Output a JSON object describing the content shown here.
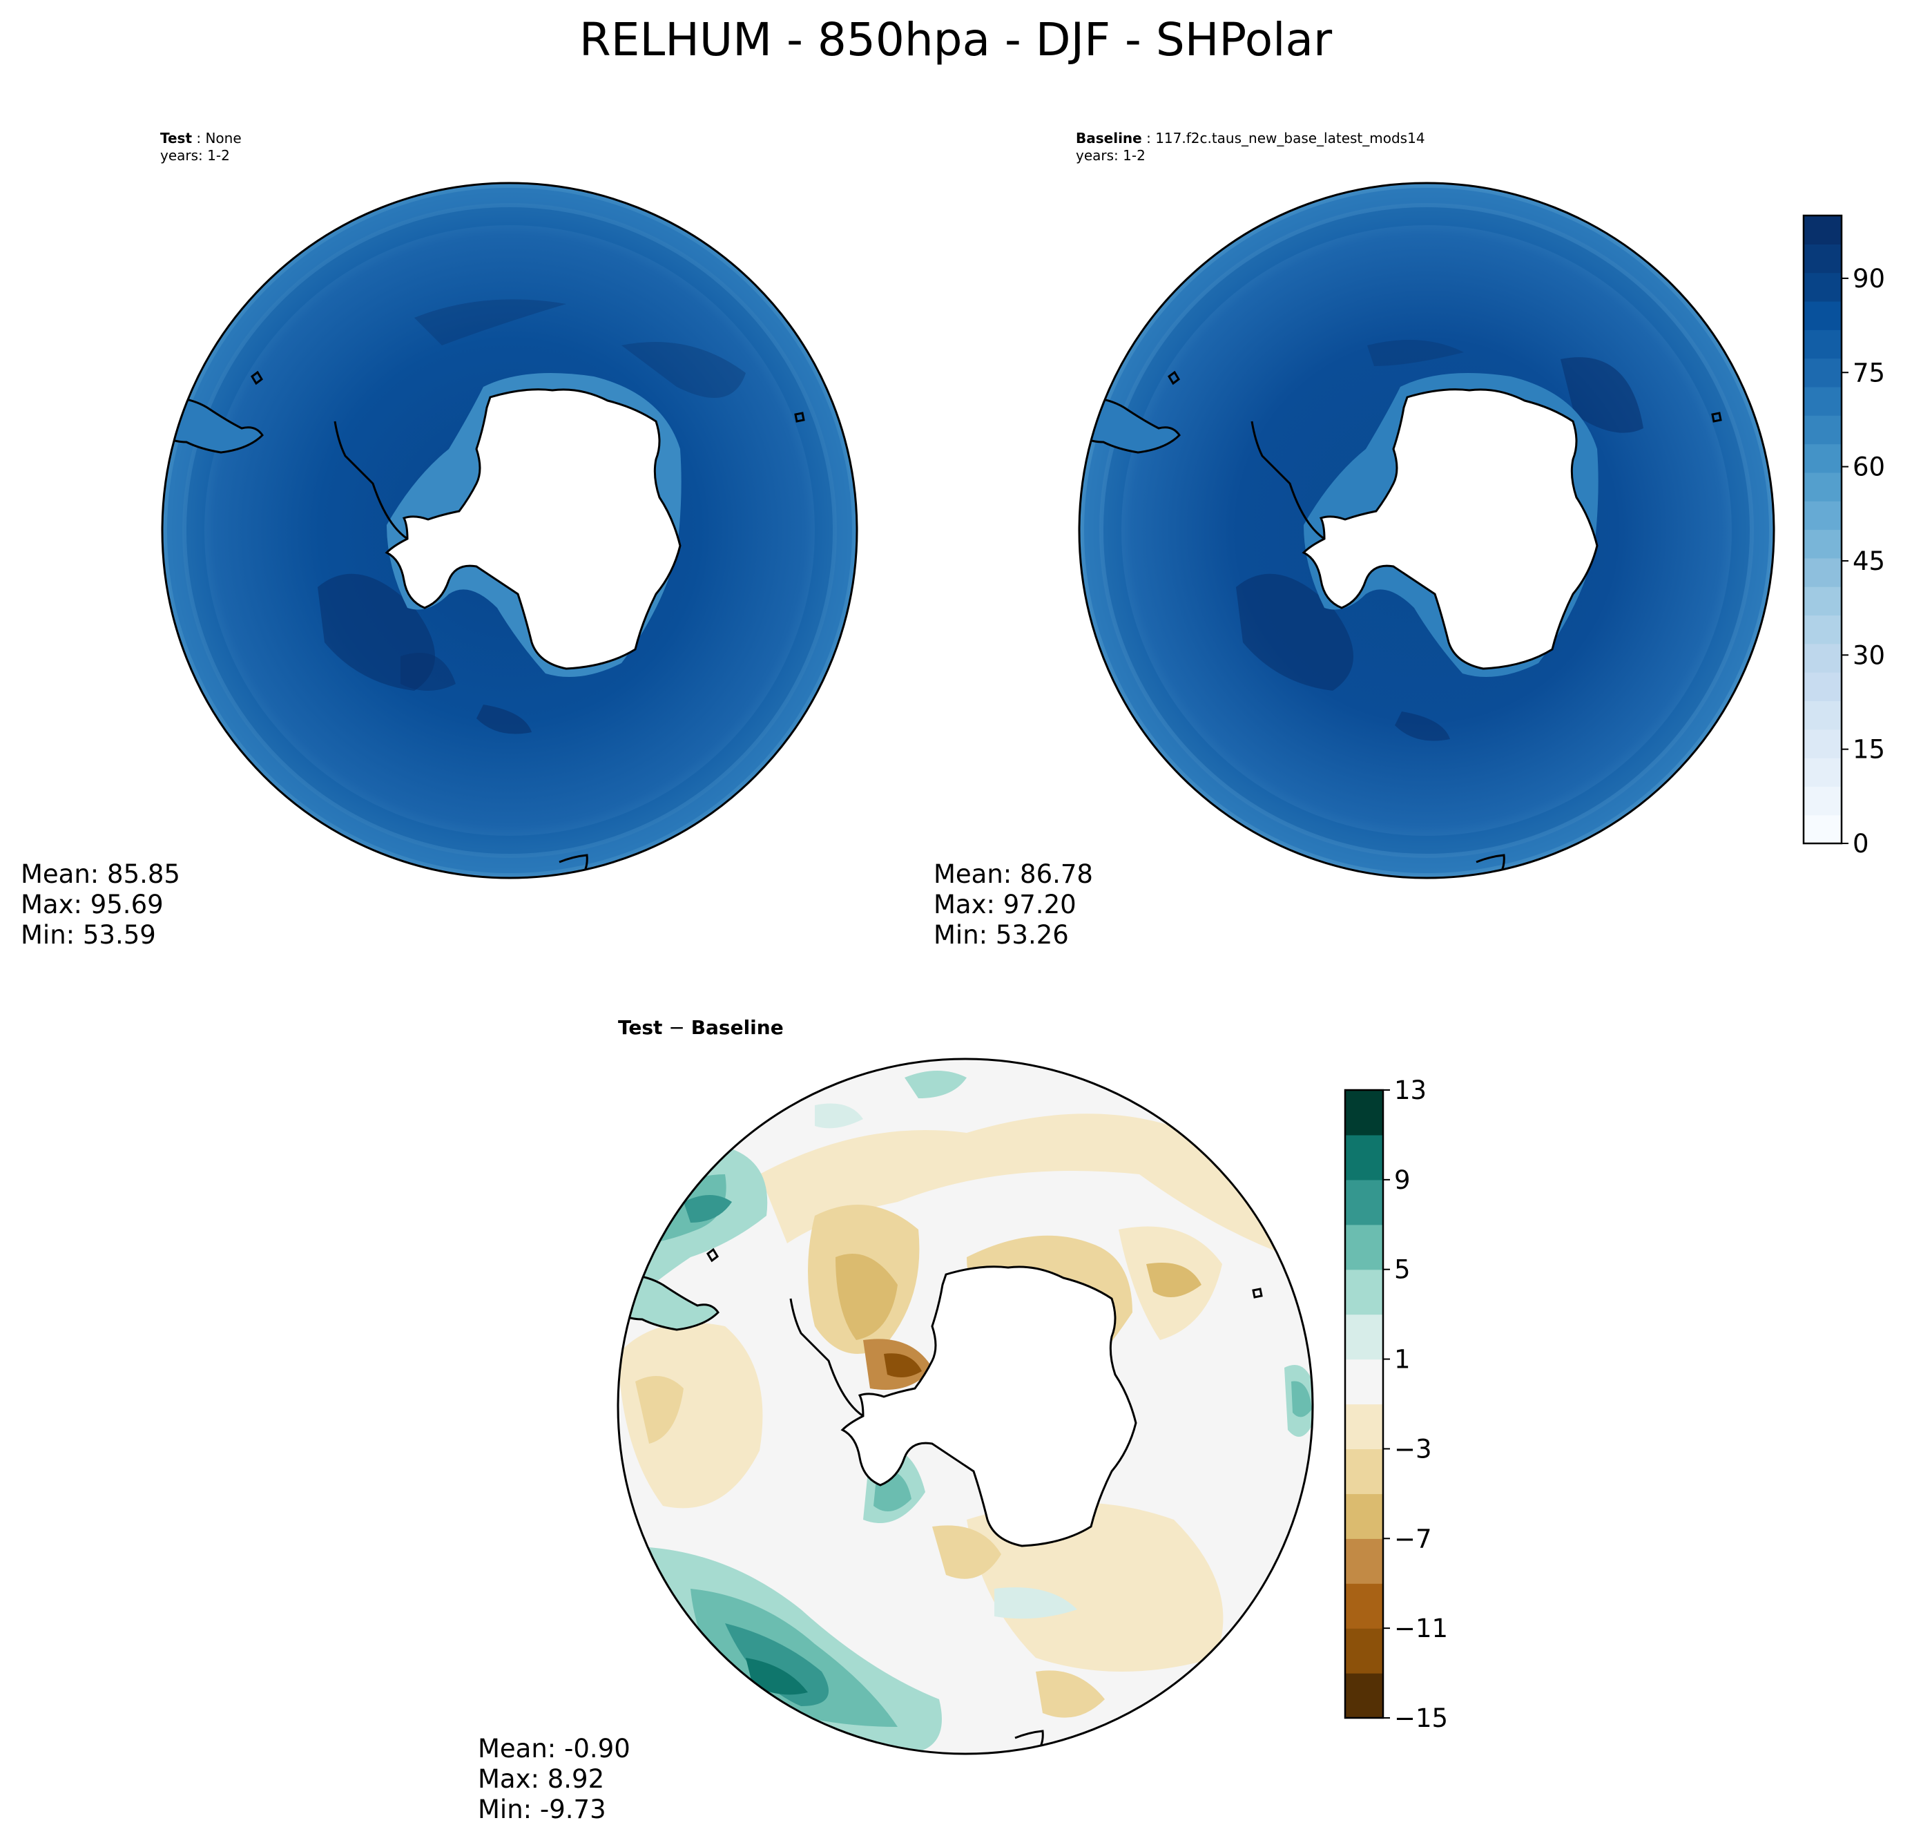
{
  "title": "RELHUM - 850hpa - DJF - SHPolar",
  "panels": [
    {
      "id": "test",
      "label_bold": "Test",
      "label_sep": " : ",
      "label_value": "None",
      "years": "years: 1-2",
      "stats": {
        "mean": "Mean: 85.85",
        "max": "Max: 95.69",
        "min": "Min: 53.59"
      }
    },
    {
      "id": "baseline",
      "label_bold": "Baseline",
      "label_sep": " : ",
      "label_value": "117.f2c.taus_new_base_latest_mods14",
      "years": "years: 1-2",
      "stats": {
        "mean": "Mean: 86.78",
        "max": "Max: 97.20",
        "min": "Min: 53.26"
      }
    },
    {
      "id": "difference",
      "label_bold": "Test",
      "label_sep": " − ",
      "label_value": "Baseline",
      "years": "",
      "stats": {
        "mean": "Mean: -0.90",
        "max": "Max:  8.92",
        "min": "Min: -9.73"
      }
    }
  ],
  "chart_data": [
    {
      "type": "heatmap",
      "name": "test",
      "colormap": "Blues",
      "vmin": 0,
      "vmax": 100,
      "mean": 85.85,
      "max": 95.69,
      "min": 53.59
    },
    {
      "type": "heatmap",
      "name": "baseline",
      "colormap": "Blues",
      "vmin": 0,
      "vmax": 100,
      "mean": 86.78,
      "max": 97.2,
      "min": 53.26
    },
    {
      "type": "heatmap",
      "name": "difference",
      "colormap": "BrBG",
      "vmin": -15,
      "vmax": 13,
      "mean": -0.9,
      "max": 8.92,
      "min": -9.73
    }
  ],
  "colorbars": {
    "main": {
      "ticks": [
        "0",
        "15",
        "30",
        "45",
        "60",
        "75",
        "90"
      ],
      "tick_values": [
        0,
        15,
        30,
        45,
        60,
        75,
        90
      ],
      "range": [
        0,
        100
      ],
      "colors": [
        "#f7fbff",
        "#eef5fc",
        "#e5eff9",
        "#dce9f6",
        "#d3e4f3",
        "#c8dcf0",
        "#bed7ec",
        "#b0d2e8",
        "#a0cae3",
        "#8ebfdd",
        "#79b5d8",
        "#66aad4",
        "#549fcd",
        "#4493c7",
        "#3585bf",
        "#2878b8",
        "#1d6aaf",
        "#125ea6",
        "#08519c",
        "#084488",
        "#083a7a",
        "#08306b"
      ]
    },
    "diff": {
      "ticks": [
        "13",
        "9",
        "5",
        "1",
        "−3",
        "−7",
        "−11",
        "−15"
      ],
      "tick_values": [
        13,
        9,
        5,
        1,
        -3,
        -7,
        -11,
        -15
      ],
      "range": [
        -15,
        13
      ],
      "colors": [
        "#543005",
        "#8c510a",
        "#a86215",
        "#c28a45",
        "#dbbb6f",
        "#ecd69e",
        "#f5e8c7",
        "#f5f5f5",
        "#d7ede9",
        "#a6dbd0",
        "#6bbdb0",
        "#35978f",
        "#0f766c",
        "#003c30"
      ]
    }
  },
  "colors": {
    "ocean_test": "#08519c",
    "ocean_baseline": "#0c4f98",
    "land": "#ffffff",
    "coast": "#000000"
  }
}
